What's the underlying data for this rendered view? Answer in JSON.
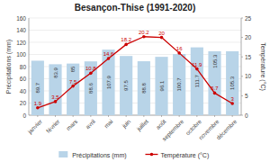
{
  "chart_data": {
    "type": "bar",
    "title": "Besançon-Thise (1991-2020)",
    "categories": [
      "janvier",
      "février",
      "mars",
      "avril",
      "mai",
      "juin",
      "juillet",
      "août",
      "septembre",
      "octobre",
      "novembre",
      "décembre"
    ],
    "series": [
      {
        "name": "Précipitations (mm)",
        "type": "bar",
        "color": "#b8d4e8",
        "values": [
          89.7,
          83.9,
          85.0,
          88.6,
          107.9,
          97.5,
          88.8,
          96.1,
          100.7,
          111.7,
          105.3,
          105.3
        ]
      },
      {
        "name": "Température (°C)",
        "type": "line",
        "axis": "y2",
        "color": "#cc0000",
        "marker": "circle",
        "values": [
          1.9,
          3.5,
          7.5,
          10.8,
          14.6,
          18.2,
          20.2,
          20.0,
          16.0,
          11.9,
          5.7,
          3.0
        ]
      }
    ],
    "ylabel": "Précipitations (mm)",
    "y2label": "Température (°C)",
    "ylim": [
      0,
      160
    ],
    "yticks": [
      0,
      20,
      40,
      60,
      80,
      100,
      120,
      140,
      160
    ],
    "y2lim": [
      0,
      25
    ],
    "y2ticks": [
      0,
      5,
      10,
      15,
      20,
      25
    ],
    "grid": true,
    "data_labels": true,
    "legend": "bottom"
  }
}
